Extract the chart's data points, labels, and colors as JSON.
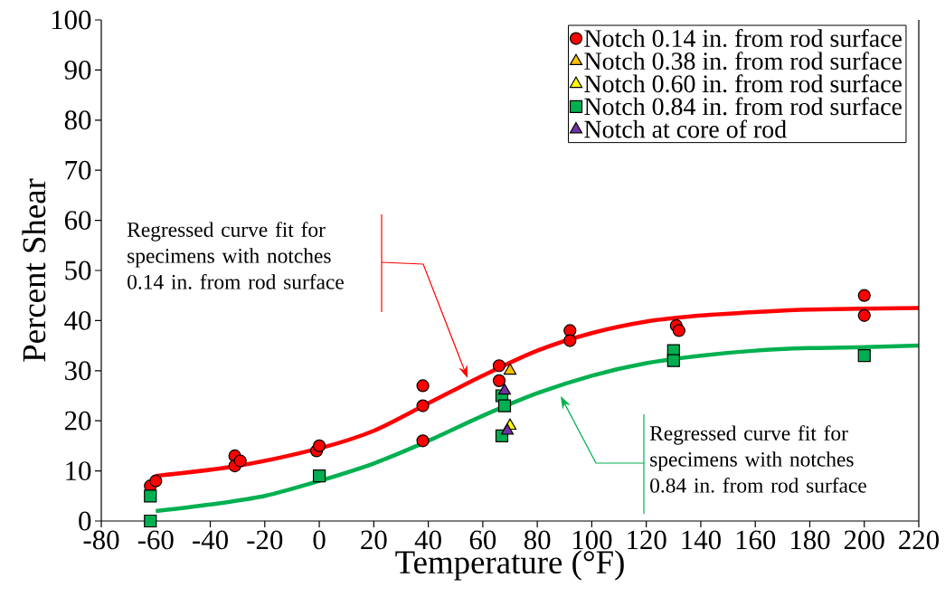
{
  "chart_data": {
    "type": "scatter",
    "xlabel": "Temperature (°F)",
    "ylabel": "Percent Shear",
    "xlim": [
      -80,
      220
    ],
    "ylim": [
      0,
      100
    ],
    "xticks": [
      -80,
      -60,
      -40,
      -20,
      0,
      20,
      40,
      60,
      80,
      100,
      120,
      140,
      160,
      180,
      200,
      220
    ],
    "yticks": [
      0,
      10,
      20,
      30,
      40,
      50,
      60,
      70,
      80,
      90,
      100
    ],
    "grid": false,
    "legend": "top right",
    "series": [
      {
        "name": "Notch 0.14 in. from rod surface",
        "marker": "circle",
        "color": "#ff0000",
        "x": [
          -62,
          -60,
          -31,
          -31,
          -29,
          -1,
          0,
          38,
          38,
          38,
          66,
          66,
          92,
          92,
          131,
          132,
          200,
          200
        ],
        "values": [
          7,
          8,
          13,
          11,
          12,
          14,
          15,
          27,
          23,
          16,
          31,
          28,
          38,
          36,
          39,
          38,
          45,
          41
        ]
      },
      {
        "name": "Notch 0.38 in. from rod surface",
        "marker": "triangle",
        "color": "#ffc000",
        "x": [
          70
        ],
        "values": [
          30
        ]
      },
      {
        "name": "Notch 0.60 in. from rod surface",
        "marker": "triangle",
        "color": "#ffff00",
        "x": [
          70
        ],
        "values": [
          19
        ]
      },
      {
        "name": "Notch 0.84 in. from rod surface",
        "marker": "square",
        "color": "#00b050",
        "x": [
          -62,
          -62,
          0,
          67,
          68,
          67,
          130,
          130,
          200
        ],
        "values": [
          5,
          0,
          9,
          25,
          23,
          17,
          34,
          32,
          33
        ]
      },
      {
        "name": "Notch at core of rod",
        "marker": "triangle",
        "color": "#7030a0",
        "x": [
          68,
          69
        ],
        "values": [
          26,
          18
        ]
      },
      {
        "type": "line",
        "marker": "none",
        "line_style": "solid",
        "color": "#ff0000",
        "x": [
          -60,
          -30,
          0,
          20,
          40,
          60,
          80,
          100,
          120,
          140,
          160,
          180,
          220
        ],
        "values": [
          9,
          11,
          14.5,
          18,
          23.5,
          29,
          34,
          37.5,
          39.8,
          41,
          41.7,
          42.2,
          42.5
        ]
      },
      {
        "type": "line",
        "marker": "none",
        "line_style": "solid",
        "color": "#00b050",
        "x": [
          -60,
          -40,
          -20,
          0,
          20,
          40,
          60,
          80,
          100,
          120,
          140,
          160,
          180,
          200,
          220
        ],
        "values": [
          2,
          3.3,
          5,
          8,
          11.5,
          16,
          21,
          25.5,
          29,
          31.5,
          33,
          34,
          34.5,
          34.7,
          35
        ]
      }
    ],
    "annotations": [
      "Regressed curve fit for specimens with notches 0.14 in. from rod surface",
      "Regressed curve fit for specimens with notches 0.84 in. from rod surface"
    ]
  }
}
